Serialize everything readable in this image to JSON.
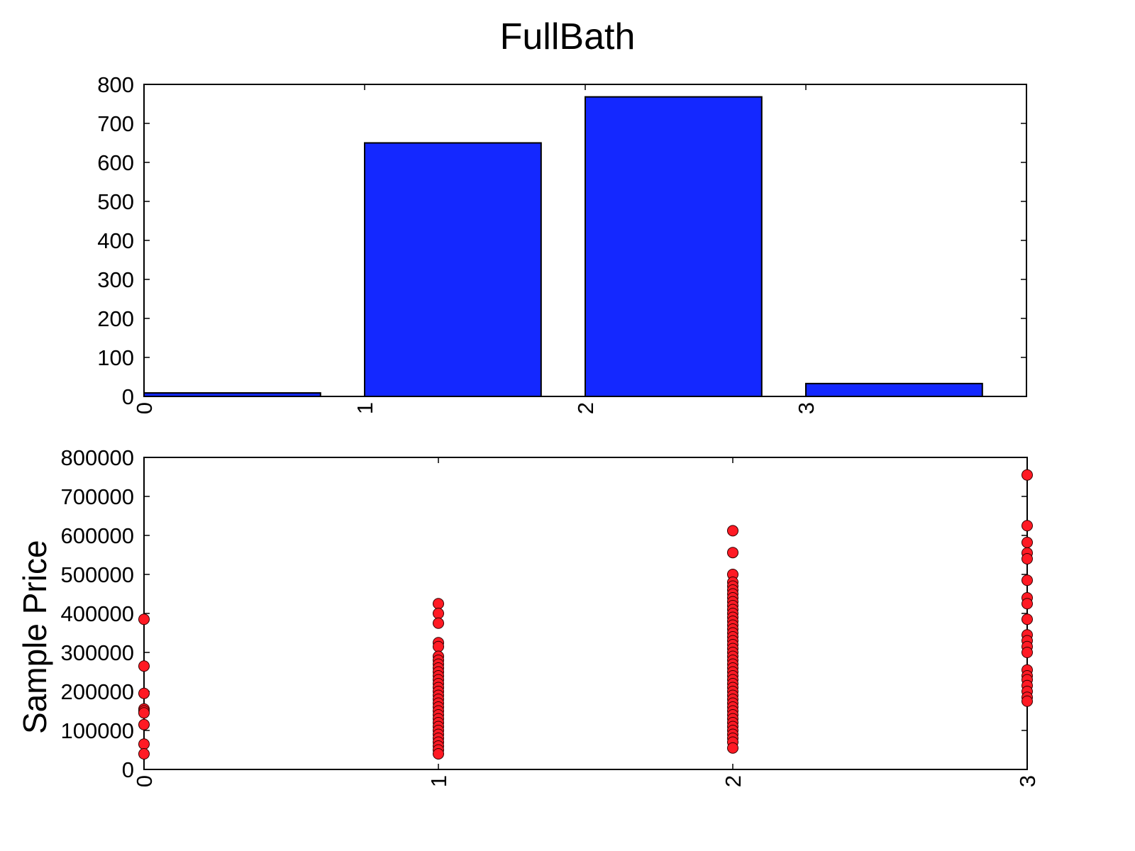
{
  "chart_data": [
    {
      "type": "bar",
      "title": "FullBath",
      "categories": [
        "0",
        "1",
        "2",
        "3"
      ],
      "values": [
        9,
        650,
        768,
        33
      ],
      "ylim": [
        0,
        800
      ],
      "yticks": [
        "0",
        "100",
        "200",
        "300",
        "400",
        "500",
        "600",
        "700",
        "800"
      ],
      "xticks": [
        "0",
        "1",
        "2",
        "3"
      ],
      "xlabel": "",
      "ylabel": "",
      "colors": {
        "bar": "#1428ff",
        "edge": "#000000"
      },
      "grid": false
    },
    {
      "type": "scatter",
      "xlabel": "",
      "ylabel": "Sample Price",
      "xlim": [
        0,
        3
      ],
      "ylim": [
        0,
        800000
      ],
      "yticks": [
        "0",
        "100000",
        "200000",
        "300000",
        "400000",
        "500000",
        "600000",
        "700000",
        "800000"
      ],
      "xticks": [
        "0",
        "1",
        "2",
        "3"
      ],
      "colors": {
        "marker": "#ff1a24",
        "edge": "#300000"
      },
      "grid": false,
      "series": [
        {
          "x": 0,
          "y": [
            385000,
            265000,
            195000,
            155000,
            150000,
            145000,
            115000,
            65000,
            40000
          ]
        },
        {
          "x": 1,
          "y": [
            425000,
            400000,
            375000,
            325000,
            315000,
            290000,
            280000,
            270000,
            260000,
            250000,
            240000,
            230000,
            220000,
            210000,
            200000,
            190000,
            180000,
            170000,
            160000,
            150000,
            140000,
            130000,
            120000,
            110000,
            100000,
            90000,
            80000,
            70000,
            60000,
            50000,
            40000
          ]
        },
        {
          "x": 2,
          "y": [
            612000,
            556000,
            500000,
            480000,
            470000,
            460000,
            450000,
            440000,
            430000,
            420000,
            410000,
            400000,
            390000,
            380000,
            370000,
            360000,
            350000,
            340000,
            330000,
            320000,
            310000,
            300000,
            290000,
            280000,
            270000,
            260000,
            250000,
            240000,
            230000,
            220000,
            210000,
            200000,
            190000,
            180000,
            170000,
            160000,
            150000,
            140000,
            130000,
            120000,
            110000,
            100000,
            90000,
            80000,
            70000,
            55000
          ]
        },
        {
          "x": 3,
          "y": [
            755000,
            625000,
            582000,
            555000,
            540000,
            485000,
            440000,
            425000,
            385000,
            345000,
            330000,
            315000,
            300000,
            255000,
            240000,
            230000,
            215000,
            200000,
            185000,
            175000
          ]
        }
      ]
    }
  ]
}
